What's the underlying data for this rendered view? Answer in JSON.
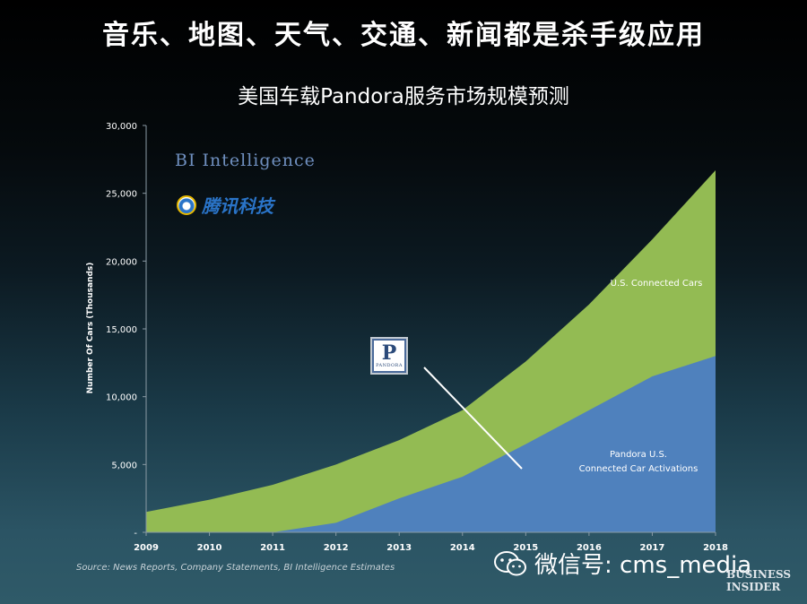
{
  "slide_title": "音乐、地图、天气、交通、新闻都是杀手级应用",
  "chart_title": "美国车载Pandora服务市场规模预测",
  "logos": {
    "bi_intelligence": "BI Intelligence",
    "tencent": "腾讯科技",
    "pandora_letter": "P",
    "pandora_word": "PANDORA",
    "business_insider_line1": "BUSINESS",
    "business_insider_line2": "INSIDER"
  },
  "source": "Source: News Reports, Company Statements, BI Intelligence Estimates",
  "watermark": "微信号: cms_media",
  "colors": {
    "connected_cars": "#93bb53",
    "pandora_activations": "#4f81bd",
    "annotation_text": "#ffffff"
  },
  "chart_data": {
    "type": "area",
    "title": "美国车载Pandora服务市场规模预测",
    "xlabel": "",
    "ylabel": "Number Of Cars (Thousands)",
    "x": [
      2009,
      2010,
      2011,
      2012,
      2013,
      2014,
      2015,
      2016,
      2017,
      2018
    ],
    "x_tick_labels": [
      "2009",
      "2010",
      "2011",
      "2012",
      "2013",
      "2014",
      "2015",
      "2016",
      "2017",
      "2018"
    ],
    "ylim": [
      0,
      30000
    ],
    "y_ticks": [
      0,
      5000,
      10000,
      15000,
      20000,
      25000,
      30000
    ],
    "y_tick_labels": [
      "-",
      "5,000",
      "10,000",
      "15,000",
      "20,000",
      "25,000",
      "30,000"
    ],
    "grid": false,
    "legend": "none",
    "series": [
      {
        "name": "U.S. Connected Cars",
        "values": [
          1500,
          2400,
          3500,
          5000,
          6800,
          9000,
          12600,
          16800,
          21600,
          26700
        ]
      },
      {
        "name": "Pandora U.S. Connected Car Activations",
        "values": [
          0,
          0,
          0,
          700,
          2500,
          4100,
          6500,
          9000,
          11500,
          13000
        ]
      }
    ],
    "annotations": [
      {
        "text": "U.S. Connected Cars",
        "series": 0
      },
      {
        "text_line1": "Pandora U.S.",
        "text_line2": "Connected Car Activations",
        "series": 1
      }
    ]
  }
}
